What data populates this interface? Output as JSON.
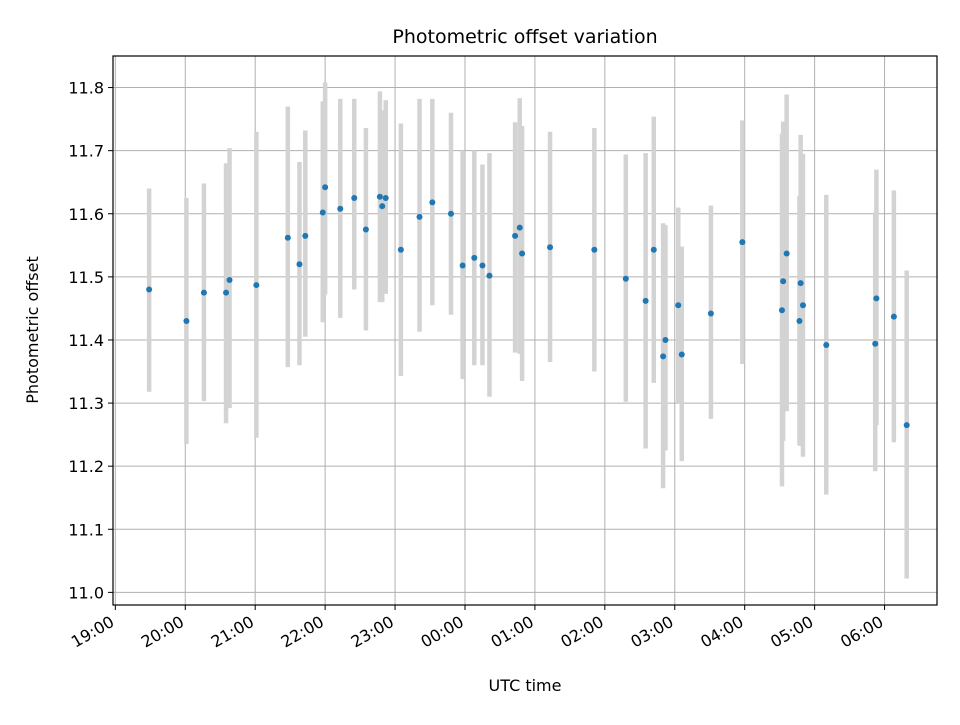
{
  "chart_data": {
    "type": "scatter",
    "title": "Photometric offset variation",
    "xlabel": "UTC time",
    "ylabel": "Photometric offset",
    "grid": true,
    "ylim": [
      10.98,
      11.85
    ],
    "xlim": [
      "2000-01-01T18:58",
      "2000-01-02T06:45"
    ],
    "x_tick_labels": [
      "19:00",
      "20:00",
      "21:00",
      "22:00",
      "23:00",
      "00:00",
      "01:00",
      "02:00",
      "03:00",
      "04:00",
      "05:00",
      "06:00"
    ],
    "y_tick_labels": [
      "11.0",
      "11.1",
      "11.2",
      "11.3",
      "11.4",
      "11.5",
      "11.6",
      "11.7",
      "11.8"
    ],
    "marker_color": "#1f77b4",
    "errorbar_color": "#d3d3d3",
    "series": [
      {
        "x": [
          "2000-01-01T19:29",
          "2000-01-01T20:01",
          "2000-01-01T20:16",
          "2000-01-01T20:35",
          "2000-01-01T20:38",
          "2000-01-01T21:01",
          "2000-01-01T21:28",
          "2000-01-01T21:38",
          "2000-01-01T21:43",
          "2000-01-01T21:58",
          "2000-01-01T22:00",
          "2000-01-01T22:13",
          "2000-01-01T22:25",
          "2000-01-01T22:35",
          "2000-01-01T22:47",
          "2000-01-01T22:49",
          "2000-01-01T22:52",
          "2000-01-01T23:05",
          "2000-01-01T23:21",
          "2000-01-01T23:32",
          "2000-01-01T23:48",
          "2000-01-01T23:58",
          "2000-01-02T00:08",
          "2000-01-02T00:15",
          "2000-01-02T00:21",
          "2000-01-02T00:43",
          "2000-01-02T00:47",
          "2000-01-02T00:49",
          "2000-01-02T01:13",
          "2000-01-02T01:51",
          "2000-01-02T02:18",
          "2000-01-02T02:35",
          "2000-01-02T02:42",
          "2000-01-02T02:50",
          "2000-01-02T02:52",
          "2000-01-02T03:03",
          "2000-01-02T03:06",
          "2000-01-02T03:31",
          "2000-01-02T03:58",
          "2000-01-02T04:32",
          "2000-01-02T04:33",
          "2000-01-02T04:36",
          "2000-01-02T04:47",
          "2000-01-02T04:48",
          "2000-01-02T04:50",
          "2000-01-02T05:10",
          "2000-01-02T05:52",
          "2000-01-02T05:53",
          "2000-01-02T06:08",
          "2000-01-02T06:19"
        ],
        "y": [
          11.48,
          11.43,
          11.475,
          11.475,
          11.495,
          11.487,
          11.562,
          11.52,
          11.565,
          11.602,
          11.642,
          11.608,
          11.625,
          11.575,
          11.627,
          11.612,
          11.625,
          11.543,
          11.595,
          11.618,
          11.6,
          11.518,
          11.53,
          11.518,
          11.502,
          11.565,
          11.578,
          11.537,
          11.547,
          11.543,
          11.497,
          11.462,
          11.543,
          11.374,
          11.4,
          11.455,
          11.377,
          11.442,
          11.555,
          11.447,
          11.493,
          11.537,
          11.43,
          11.49,
          11.455,
          11.392,
          11.394,
          11.466,
          11.437,
          11.265
        ],
        "yerr_low": [
          11.318,
          11.235,
          11.303,
          11.268,
          11.292,
          11.245,
          11.357,
          11.36,
          11.405,
          11.428,
          11.472,
          11.435,
          11.48,
          11.415,
          11.46,
          11.46,
          11.473,
          11.343,
          11.413,
          11.455,
          11.44,
          11.338,
          11.36,
          11.36,
          11.31,
          11.38,
          11.378,
          11.335,
          11.365,
          11.35,
          11.302,
          11.228,
          11.332,
          11.165,
          11.225,
          11.3,
          11.208,
          11.275,
          11.362,
          11.168,
          11.24,
          11.287,
          11.233,
          11.232,
          11.215,
          11.155,
          11.192,
          11.265,
          11.238,
          11.022
        ],
        "yerr_high": [
          11.64,
          11.625,
          11.648,
          11.68,
          11.704,
          11.73,
          11.77,
          11.682,
          11.732,
          11.778,
          11.808,
          11.782,
          11.782,
          11.736,
          11.794,
          11.764,
          11.78,
          11.743,
          11.782,
          11.782,
          11.76,
          11.7,
          11.7,
          11.678,
          11.696,
          11.745,
          11.783,
          11.739,
          11.73,
          11.736,
          11.694,
          11.696,
          11.754,
          11.585,
          11.582,
          11.61,
          11.548,
          11.613,
          11.748,
          11.727,
          11.746,
          11.789,
          11.628,
          11.725,
          11.695,
          11.63,
          11.602,
          11.67,
          11.637,
          11.51
        ]
      }
    ]
  }
}
